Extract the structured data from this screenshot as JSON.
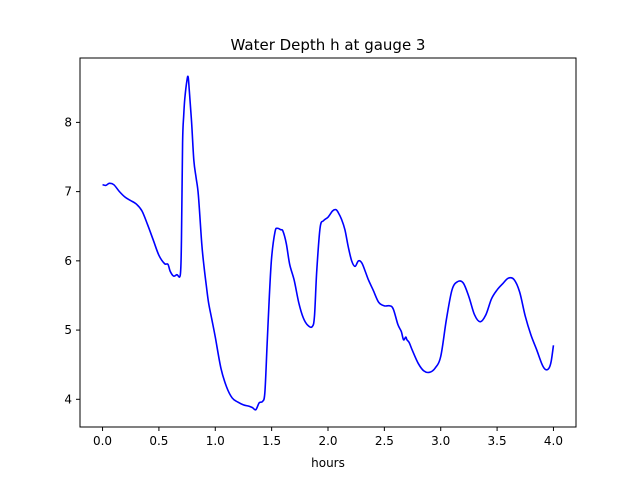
{
  "chart_data": {
    "type": "line",
    "title": "Water Depth h at gauge 3",
    "xlabel": "hours",
    "ylabel": "",
    "xlim": [
      -0.2,
      4.2
    ],
    "ylim": [
      3.6,
      8.93
    ],
    "xticks": [
      0.0,
      0.5,
      1.0,
      1.5,
      2.0,
      2.5,
      3.0,
      3.5,
      4.0
    ],
    "xtick_labels": [
      "0.0",
      "0.5",
      "1.0",
      "1.5",
      "2.0",
      "2.5",
      "3.0",
      "3.5",
      "4.0"
    ],
    "yticks": [
      4,
      5,
      6,
      7,
      8
    ],
    "ytick_labels": [
      "4",
      "5",
      "6",
      "7",
      "8"
    ],
    "grid": false,
    "line_color": "#0000ff",
    "series": [
      {
        "x": [
          0.0,
          0.03,
          0.06,
          0.1,
          0.15,
          0.2,
          0.25,
          0.3,
          0.35,
          0.4,
          0.45,
          0.5,
          0.55,
          0.58,
          0.6,
          0.63,
          0.66,
          0.69,
          0.7,
          0.71,
          0.72,
          0.73,
          0.75,
          0.76,
          0.77,
          0.79,
          0.81,
          0.83,
          0.85,
          0.88,
          0.9,
          0.92,
          0.94,
          0.97,
          1.0,
          1.05,
          1.1,
          1.15,
          1.2,
          1.25,
          1.3,
          1.33,
          1.36,
          1.39,
          1.42,
          1.44,
          1.46,
          1.48,
          1.5,
          1.53,
          1.55,
          1.58,
          1.6,
          1.63,
          1.66,
          1.7,
          1.74,
          1.78,
          1.82,
          1.86,
          1.88,
          1.9,
          1.93,
          1.96,
          2.0,
          2.04,
          2.07,
          2.09,
          2.12,
          2.15,
          2.18,
          2.21,
          2.24,
          2.27,
          2.3,
          2.33,
          2.36,
          2.4,
          2.45,
          2.5,
          2.55,
          2.58,
          2.62,
          2.65,
          2.67,
          2.69,
          2.7,
          2.72,
          2.75,
          2.8,
          2.85,
          2.9,
          2.95,
          3.0,
          3.05,
          3.1,
          3.15,
          3.2,
          3.25,
          3.3,
          3.35,
          3.4,
          3.45,
          3.5,
          3.55,
          3.6,
          3.65,
          3.7,
          3.75,
          3.8,
          3.85,
          3.9,
          3.93,
          3.96,
          3.98,
          4.0
        ],
        "y": [
          7.1,
          7.09,
          7.12,
          7.1,
          7.0,
          6.92,
          6.87,
          6.82,
          6.72,
          6.52,
          6.3,
          6.08,
          5.96,
          5.95,
          5.85,
          5.78,
          5.8,
          5.8,
          6.3,
          7.7,
          8.1,
          8.35,
          8.62,
          8.65,
          8.45,
          8.0,
          7.45,
          7.2,
          6.95,
          6.25,
          5.92,
          5.65,
          5.4,
          5.15,
          4.9,
          4.45,
          4.18,
          4.02,
          3.96,
          3.92,
          3.9,
          3.88,
          3.85,
          3.95,
          3.97,
          4.1,
          4.8,
          5.5,
          6.05,
          6.42,
          6.47,
          6.45,
          6.43,
          6.25,
          5.95,
          5.72,
          5.4,
          5.18,
          5.07,
          5.05,
          5.2,
          5.85,
          6.48,
          6.58,
          6.63,
          6.72,
          6.74,
          6.7,
          6.6,
          6.45,
          6.2,
          6.0,
          5.92,
          6.0,
          5.97,
          5.85,
          5.72,
          5.58,
          5.4,
          5.35,
          5.35,
          5.3,
          5.08,
          4.98,
          4.86,
          4.9,
          4.86,
          4.82,
          4.7,
          4.52,
          4.41,
          4.39,
          4.45,
          4.62,
          5.15,
          5.58,
          5.7,
          5.68,
          5.48,
          5.22,
          5.12,
          5.22,
          5.45,
          5.58,
          5.67,
          5.75,
          5.73,
          5.55,
          5.2,
          4.93,
          4.72,
          4.5,
          4.43,
          4.45,
          4.55,
          4.78
        ]
      }
    ]
  }
}
